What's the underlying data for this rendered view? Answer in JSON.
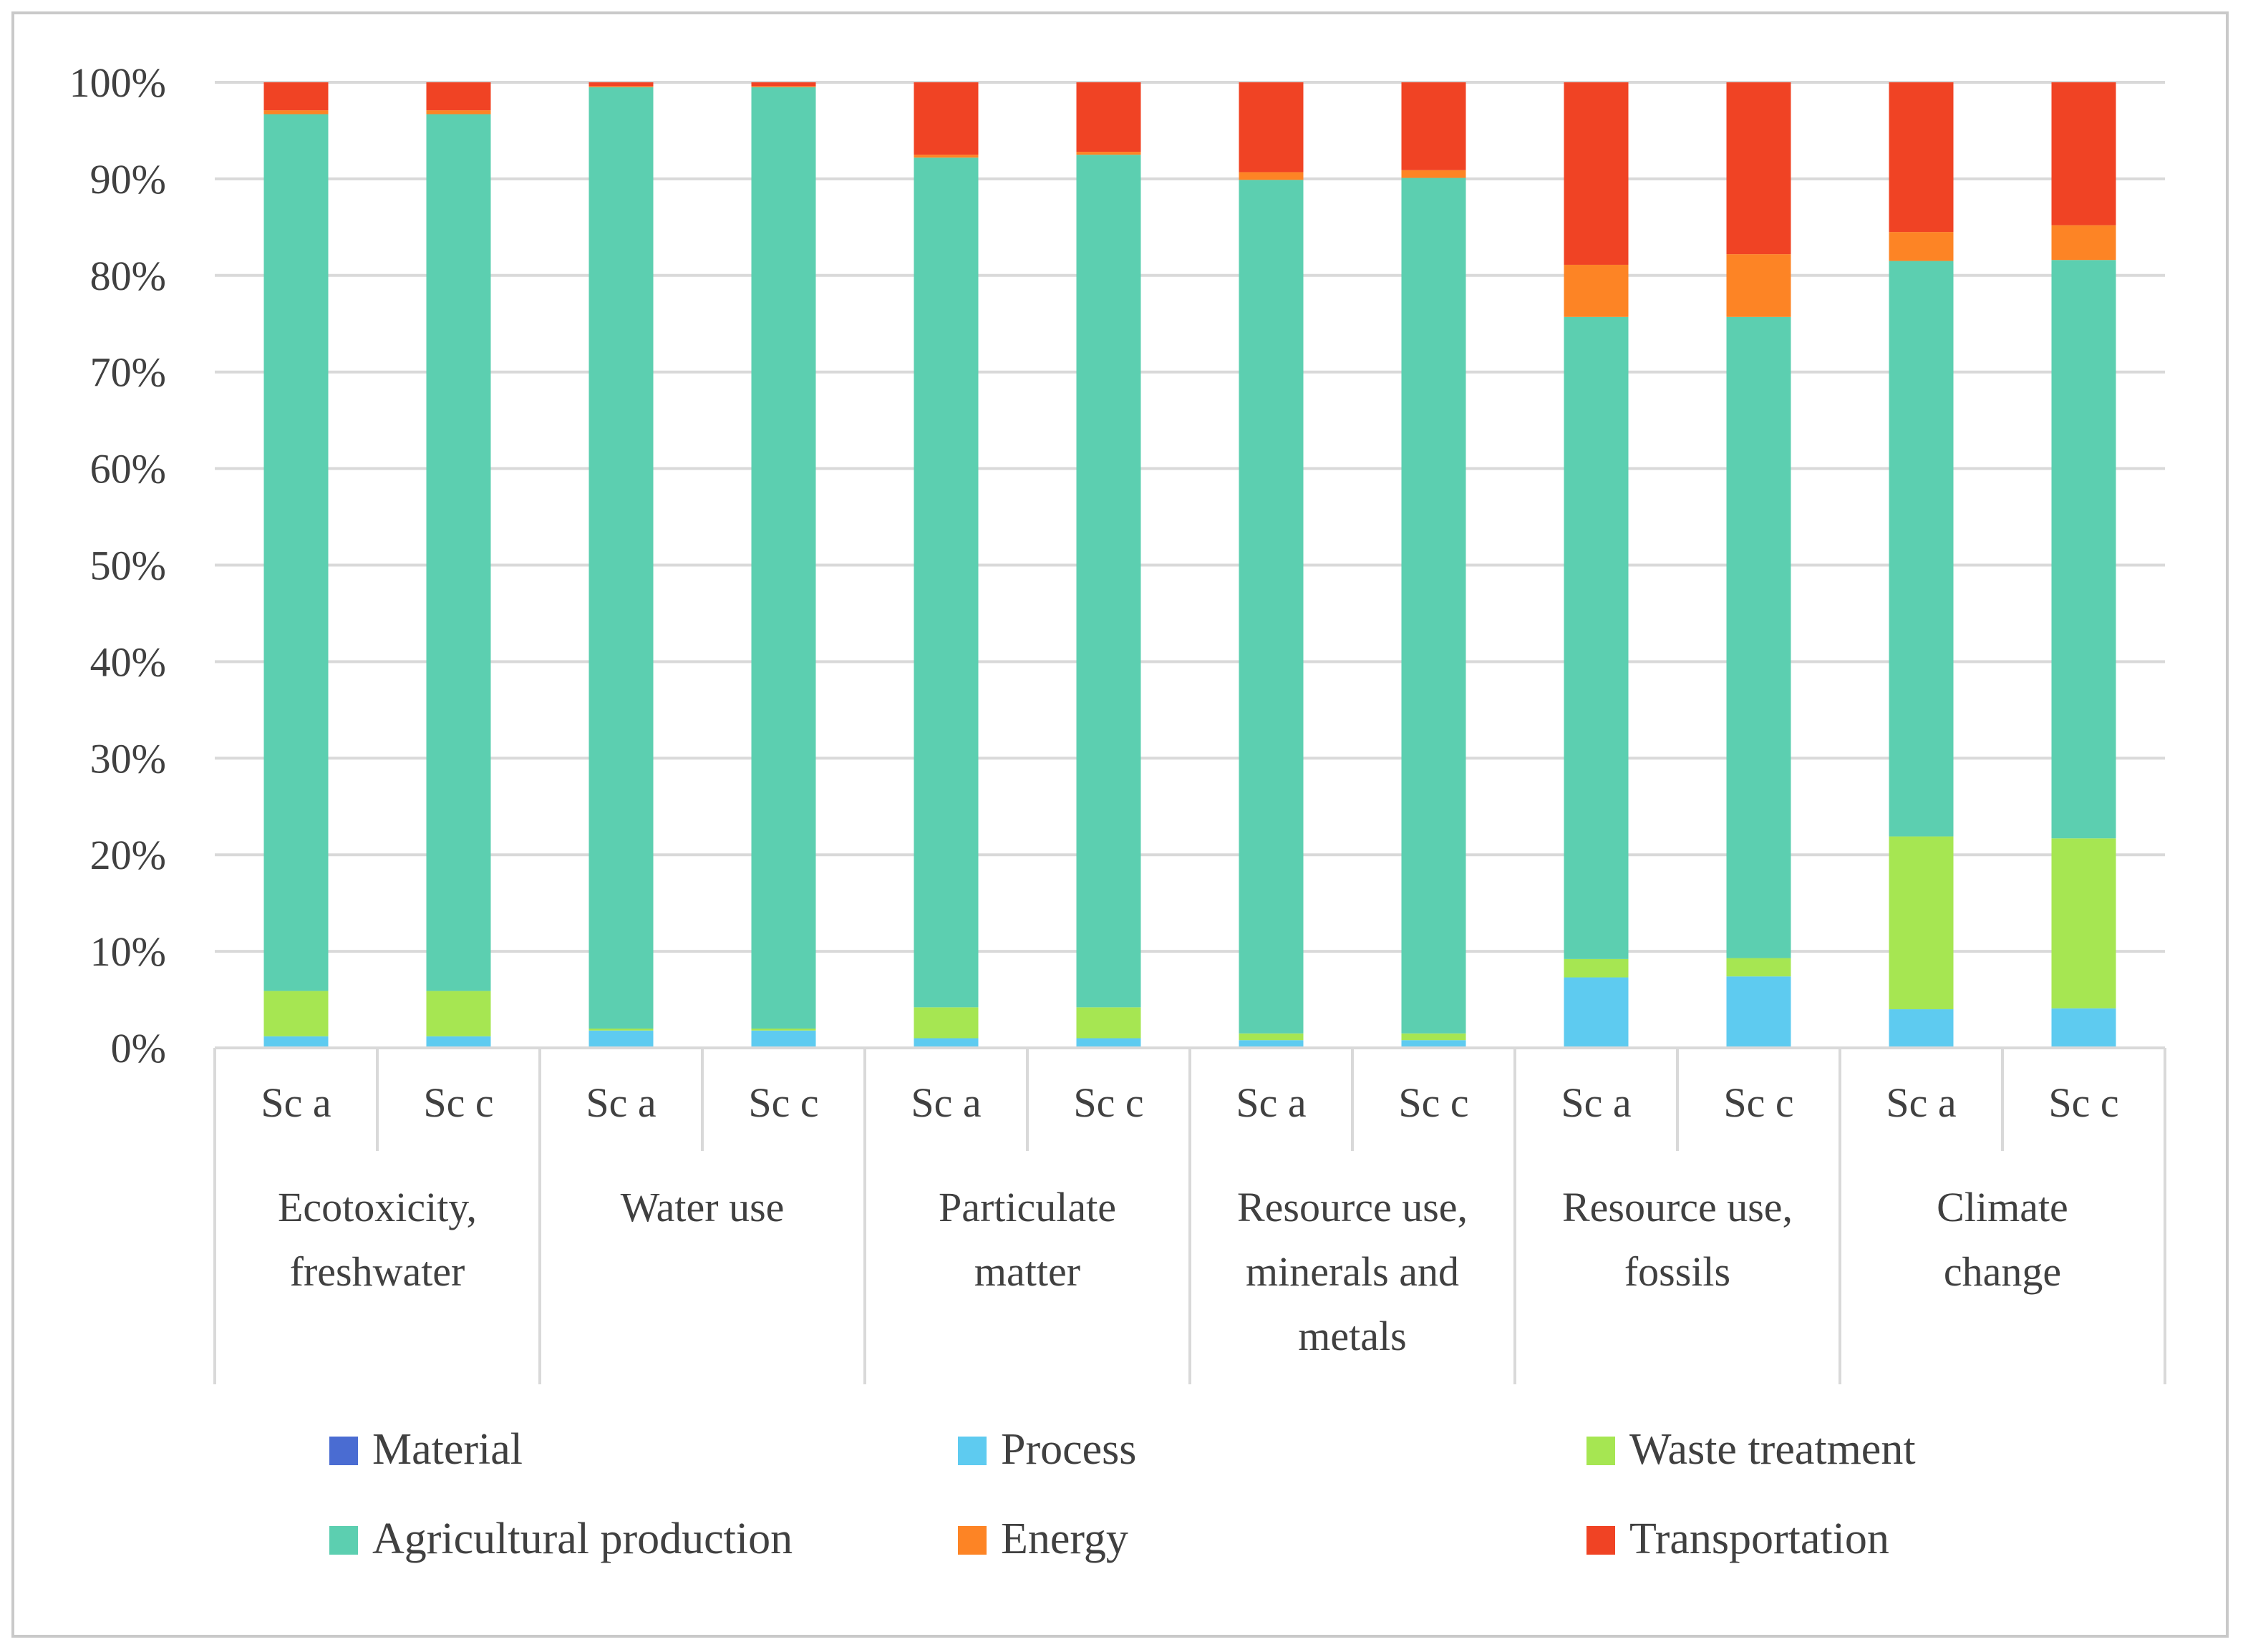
{
  "chart_data": {
    "type": "bar",
    "stacked": true,
    "stack_mode": "percent",
    "ylim": [
      0,
      100
    ],
    "ytick_step": 10,
    "ytick_labels": [
      "0%",
      "10%",
      "20%",
      "30%",
      "40%",
      "50%",
      "60%",
      "70%",
      "80%",
      "90%",
      "100%"
    ],
    "grid": true,
    "legend_position": "bottom",
    "groups": [
      {
        "label_lines": [
          "Ecotoxicity,",
          "freshwater"
        ],
        "categories": [
          "Sc a",
          "Sc c"
        ]
      },
      {
        "label_lines": [
          "Water use"
        ],
        "categories": [
          "Sc a",
          "Sc c"
        ]
      },
      {
        "label_lines": [
          "Particulate",
          "matter"
        ],
        "categories": [
          "Sc a",
          "Sc c"
        ]
      },
      {
        "label_lines": [
          "Resource use,",
          "minerals and",
          "metals"
        ],
        "categories": [
          "Sc a",
          "Sc c"
        ]
      },
      {
        "label_lines": [
          "Resource use,",
          "fossils"
        ],
        "categories": [
          "Sc a",
          "Sc c"
        ]
      },
      {
        "label_lines": [
          "Climate",
          "change"
        ],
        "categories": [
          "Sc a",
          "Sc c"
        ]
      }
    ],
    "series": [
      {
        "name": "Material",
        "color": "#4a6cd2",
        "values": [
          0,
          0,
          0,
          0,
          0,
          0,
          0,
          0,
          0,
          0,
          0,
          0
        ]
      },
      {
        "name": "Process",
        "color": "#5ecbf0",
        "values": [
          1.2,
          1.2,
          1.8,
          1.8,
          1.0,
          1.0,
          0.8,
          0.8,
          7.3,
          7.4,
          4.0,
          4.1
        ]
      },
      {
        "name": "Waste treatment",
        "color": "#a6e652",
        "values": [
          4.7,
          4.7,
          0.2,
          0.2,
          3.2,
          3.2,
          0.7,
          0.7,
          1.9,
          1.9,
          17.9,
          17.6
        ]
      },
      {
        "name": "Agricultural production",
        "color": "#5ccfb0",
        "values": [
          90.8,
          90.8,
          97.5,
          97.5,
          88.0,
          88.3,
          88.4,
          88.6,
          66.5,
          66.4,
          59.6,
          59.9
        ]
      },
      {
        "name": "Energy",
        "color": "#fd8425",
        "values": [
          0.4,
          0.4,
          0.1,
          0.1,
          0.3,
          0.3,
          0.8,
          0.8,
          5.4,
          6.5,
          3.0,
          3.6
        ]
      },
      {
        "name": "Transportation",
        "color": "#f04324",
        "values": [
          2.9,
          2.9,
          0.4,
          0.4,
          7.5,
          7.2,
          9.3,
          9.1,
          18.9,
          17.8,
          15.5,
          14.8
        ]
      }
    ]
  }
}
